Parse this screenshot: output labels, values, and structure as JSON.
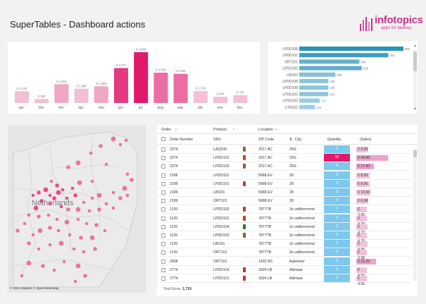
{
  "header": {
    "title": "SuperTables - Dashboard actions"
  },
  "logo": {
    "name": "infotopics",
    "tagline": "apps for tableau"
  },
  "monthly": {
    "chart_data": {
      "type": "bar",
      "categories": [
        "jan.",
        "feb.",
        "mrt.",
        "apr.",
        "mei",
        "jun.",
        "jul.",
        "aug.",
        "sep.",
        "okt.",
        "nov.",
        "dec."
      ],
      "values": [
        1140,
        384,
        1818,
        1380,
        1609,
        3377,
        4909,
        2929,
        2822,
        1152,
        604,
        750
      ],
      "labels": [
        "€ 1.140",
        "€ 384",
        "€ 1.818",
        "€ 1.380",
        "€ 1.609",
        "€ 3.377",
        "€ 4.909",
        "€ 2.929",
        "€ 2.822",
        "€ 1.152",
        "€ 604",
        "€ 750"
      ],
      "highlight_index": 6,
      "colors": {
        "light": "#f2bfd4",
        "mid": "#ea6ea3",
        "strong": "#e53a82",
        "peak": "#e0196b"
      }
    }
  },
  "products": {
    "chart_data": {
      "type": "bar",
      "orientation": "horizontal",
      "categories": [
        "LPDD109",
        "LPDD101",
        "ORT101",
        "LPDD102",
        "LBI102",
        "LPDD108",
        "LPDD106",
        "LPDD105",
        "LPDD103",
        "CTN102"
      ],
      "values": [
        880,
        752,
        508,
        528,
        306,
        246,
        246,
        244,
        172,
        134
      ],
      "color": "#2a93b7"
    }
  },
  "map": {
    "label": "Netherlands",
    "credit": "© 2021 Mapbox © OpenStreetMap",
    "dot_color": "#e8417f"
  },
  "table": {
    "group_headers": [
      "Order",
      "Product",
      "Location"
    ],
    "columns": [
      "Order Number",
      "SKU",
      "ZIP Code",
      "City",
      "Quantity",
      "(Sales)"
    ],
    "rows": [
      {
        "order": "2374",
        "sku": "LAQ106",
        "zip": "2517 AC",
        "city": "25G",
        "qty": "1",
        "sales": "€ 6,99",
        "icon": "#7a6b48"
      },
      {
        "order": "2374",
        "sku": "LPDD101",
        "zip": "2517 AC",
        "city": "25G",
        "qty": "10",
        "sales": "€ 44,90",
        "icon": "#b8452a"
      },
      {
        "order": "2374",
        "sku": "LPDD102",
        "zip": "2517 AC",
        "city": "25G",
        "qty": "4",
        "sales": "€ 17,80",
        "icon": "#9d5a2b"
      },
      {
        "order": "2186",
        "sku": "LPDD110",
        "zip": "5688 EV",
        "city": "28",
        "qty": "2",
        "sales": "€ 8,90",
        "icon": ""
      },
      {
        "order": "2186",
        "sku": "LPDD101",
        "zip": "5688 EV",
        "city": "28",
        "qty": "2",
        "sales": "€ 8,90",
        "icon": "#b8452a"
      },
      {
        "order": "2186",
        "sku": "LBI101",
        "zip": "5688 EV",
        "city": "28",
        "qty": "3",
        "sales": "€ 10,50",
        "icon": ""
      },
      {
        "order": "2186",
        "sku": "ORT101",
        "zip": "5688 EV",
        "city": "28",
        "qty": "2",
        "sales": "€ 6,98",
        "icon": ""
      },
      {
        "order": "1126",
        "sku": "LPDD103",
        "zip": "7877TB",
        "city": "2e valthermond",
        "qty": "1",
        "sales": "€ 3,95",
        "icon": "#a54a2a"
      },
      {
        "order": "1126",
        "sku": "LPDD101",
        "zip": "7877TB",
        "city": "2e valthermond",
        "qty": "1",
        "sales": "€ 4,20",
        "icon": "#b8452a"
      },
      {
        "order": "1126",
        "sku": "LPDD104",
        "zip": "7877TB",
        "city": "2e valthermond",
        "qty": "1",
        "sales": "€ 4,70",
        "icon": "#2d7a35"
      },
      {
        "order": "1126",
        "sku": "LPDD102",
        "zip": "7877TB",
        "city": "2e valthermond",
        "qty": "1",
        "sales": "€ 4,20",
        "icon": "#9d5a2b"
      },
      {
        "order": "1126",
        "sku": "LBI101",
        "zip": "7877TB",
        "city": "2e valthermond",
        "qty": "1",
        "sales": "€ 4,95",
        "icon": ""
      },
      {
        "order": "1126",
        "sku": "ORT101",
        "zip": "7877TB",
        "city": "2e valthermond",
        "qty": "1",
        "sales": "€ 3,98",
        "icon": ""
      },
      {
        "order": "2608",
        "sku": "ORT101",
        "zip": "1432 BS",
        "city": "Aalsmeer",
        "qty": "5",
        "sales": "€ 21,00",
        "icon": ""
      },
      {
        "order": "2774",
        "sku": "LPDD114",
        "zip": "1824 LB",
        "city": "Alkmaar",
        "qty": "1",
        "sales": "€ 4,55",
        "icon": "#c0332e"
      },
      {
        "order": "2774",
        "sku": "LPDD113",
        "zip": "1824 LB",
        "city": "Alkmaar",
        "qty": "1",
        "sales": "€ 4,55",
        "icon": "#c0332e"
      }
    ],
    "footer_label": "Total Rows:",
    "footer_value": "1,719",
    "colors": {
      "qty": "#7dc8ec",
      "qty_hi": "#e0196b",
      "sales": "#f0c2dc",
      "sales_hi": "#e9a3cd"
    }
  }
}
